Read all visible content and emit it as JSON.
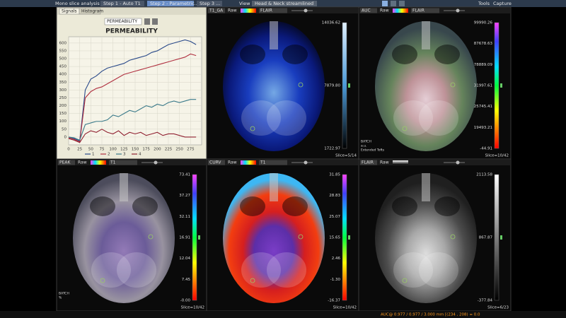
{
  "toolbar": {
    "app": "Mono slice analysis",
    "steps": [
      "Step 1 - Auto T1",
      "Step 2 - Parametric...",
      "Step 3 ..."
    ],
    "view": "View",
    "protocol": "Head & Neck streamlined",
    "tools": "Tools",
    "capture": "Capture"
  },
  "chart_panel": {
    "tabs": [
      "Signals",
      "Histogram"
    ],
    "dropdown": "PERMEABILITY"
  },
  "chart_data": {
    "type": "line",
    "title": "PERMEABILITY",
    "x": [
      0,
      12.5,
      25,
      37.5,
      50,
      62.5,
      75,
      87.5,
      100,
      112.5,
      125,
      137.5,
      150,
      162.5,
      175,
      187.5,
      200,
      212.5,
      225,
      237.5,
      250,
      262.5,
      275,
      287.5
    ],
    "series": [
      {
        "name": "1",
        "color": "#2a4a8a",
        "values": [
          0,
          -10,
          -25,
          300,
          370,
          390,
          420,
          440,
          450,
          460,
          470,
          490,
          500,
          510,
          520,
          540,
          550,
          570,
          590,
          600,
          610,
          620,
          610,
          590
        ]
      },
      {
        "name": "2",
        "color": "#b03040",
        "values": [
          -5,
          -15,
          -30,
          250,
          290,
          310,
          320,
          340,
          360,
          380,
          400,
          410,
          420,
          430,
          440,
          450,
          460,
          470,
          480,
          490,
          500,
          510,
          530,
          520
        ]
      },
      {
        "name": "3",
        "color": "#3a7a8a",
        "values": [
          0,
          -5,
          -20,
          80,
          90,
          100,
          100,
          110,
          140,
          130,
          150,
          170,
          160,
          180,
          200,
          190,
          210,
          200,
          220,
          230,
          220,
          230,
          240,
          240
        ]
      },
      {
        "name": "4",
        "color": "#902030",
        "values": [
          -10,
          -20,
          -35,
          20,
          40,
          30,
          50,
          30,
          20,
          40,
          10,
          30,
          20,
          30,
          10,
          20,
          30,
          10,
          20,
          20,
          10,
          0,
          0,
          0
        ]
      }
    ],
    "xlim": [
      0,
      300
    ],
    "xticks": [
      0,
      25,
      50,
      75,
      100,
      125,
      150,
      175,
      200,
      225,
      250,
      275
    ],
    "ylim": [
      -50,
      640
    ],
    "yticks": [
      0,
      50,
      100,
      150,
      200,
      250,
      300,
      350,
      400,
      450,
      500,
      550,
      600
    ],
    "grid": true
  },
  "panels": [
    {
      "map": "T1_GA",
      "mode": "Raw",
      "overlay": "FLAIR",
      "scale": [
        "14036.62",
        "7879.80",
        "1722.97"
      ],
      "slice": "Slice=5/14",
      "notes": []
    },
    {
      "map": "AUC",
      "mode": "Raw",
      "overlay": "FLAIR",
      "scale": [
        "99990.26",
        "87678.63",
        "78889.09",
        "31997.61",
        "25745.41",
        "19493.21",
        "-44.91"
      ],
      "slice": "Slice=10/42",
      "notes": [
        "BATCH",
        "a.u.",
        "Extended Tofts"
      ]
    },
    {
      "map": "PEAK",
      "mode": "Raw",
      "overlay": "T1",
      "scale": [
        "73.41",
        "37.27",
        "32.11",
        "16.91",
        "12.04",
        "7.45",
        "-0.00"
      ],
      "slice": "Slice=10/42",
      "notes": [
        "BATCH",
        "%"
      ]
    },
    {
      "map": "CURV",
      "mode": "Raw",
      "overlay": "T1",
      "scale": [
        "31.85",
        "28.83",
        "25.07",
        "15.65",
        "2.46",
        "-1.30",
        "-16.37"
      ],
      "slice": "Slice=10/42",
      "notes": []
    },
    {
      "map": "FLAIR",
      "mode": "Raw",
      "overlay": "",
      "scale": [
        "2113.58",
        "867.87",
        "-377.84"
      ],
      "slice": "Slice=6/23",
      "notes": []
    }
  ],
  "status": "AUC@ 0.977 / 0.977 / 3.000 mm [(234 , 208) = 0.0"
}
